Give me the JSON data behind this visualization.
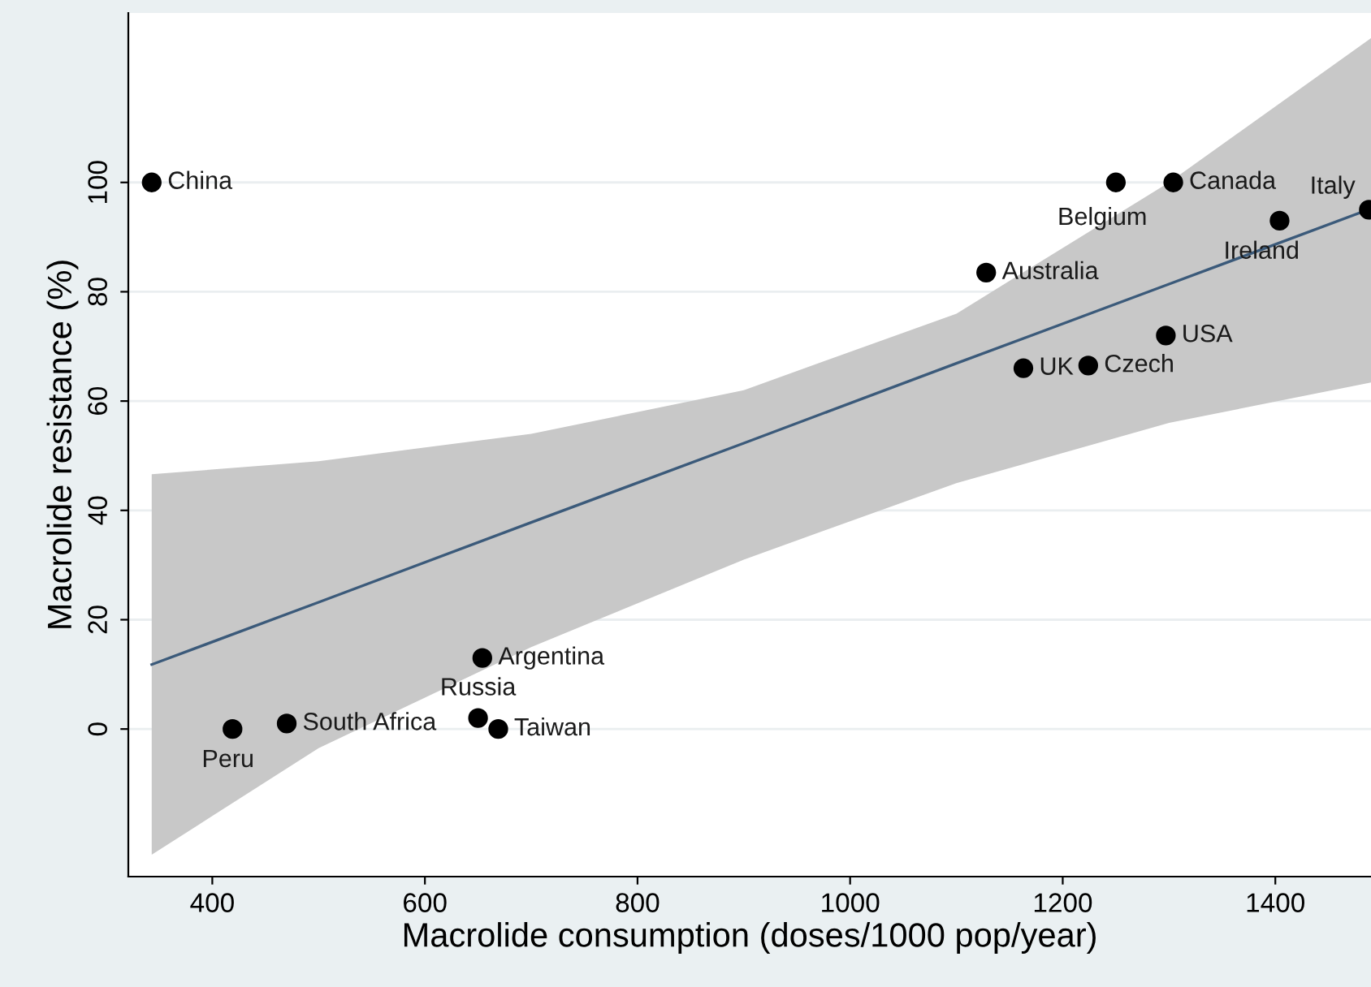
{
  "chart_data": {
    "type": "scatter",
    "xlabel": "Macrolide consumption (doses/1000 pop/year)",
    "ylabel": "Macrolide resistance (%)",
    "xlim": [
      321,
      1490
    ],
    "ylim": [
      -27,
      131
    ],
    "xticks": [
      400,
      600,
      800,
      1000,
      1200,
      1400
    ],
    "yticks": [
      0,
      20,
      40,
      60,
      80,
      100
    ],
    "grid": "y",
    "series": [
      {
        "type": "line",
        "marker": "none",
        "color": "#3b5a7a",
        "x": [
          343,
          500,
          700,
          900,
          1100,
          1300,
          1490
        ],
        "values": [
          11.8,
          23.2,
          37.8,
          52.3,
          66.9,
          81.4,
          95.2
        ],
        "lower": [
          -23,
          -3.5,
          15,
          31,
          45,
          56,
          63.4
        ],
        "upper": [
          46.6,
          49,
          54,
          62,
          76,
          100,
          126.4
        ]
      },
      {
        "marker": "circle",
        "color": "#000000",
        "x": [
          343,
          419,
          470,
          654,
          650,
          669,
          1128,
          1250,
          1304,
          1404,
          1297,
          1163,
          1224,
          1488
        ],
        "values": [
          100,
          0,
          1,
          13,
          2,
          0,
          83.5,
          100,
          100,
          93,
          72,
          66,
          66.5,
          95
        ]
      }
    ],
    "annotations": [
      {
        "text": "China",
        "x": 343,
        "y": 100
      },
      {
        "text": "Peru",
        "x": 419,
        "y": 0
      },
      {
        "text": "South Africa",
        "x": 470,
        "y": 1
      },
      {
        "text": "Argentina",
        "x": 654,
        "y": 13
      },
      {
        "text": "Russia",
        "x": 650,
        "y": 2
      },
      {
        "text": "Taiwan",
        "x": 669,
        "y": 0
      },
      {
        "text": "Australia",
        "x": 1128,
        "y": 83.5
      },
      {
        "text": "Belgium",
        "x": 1250,
        "y": 100
      },
      {
        "text": "Canada",
        "x": 1304,
        "y": 100
      },
      {
        "text": "Ireland",
        "x": 1404,
        "y": 93
      },
      {
        "text": "USA",
        "x": 1297,
        "y": 72
      },
      {
        "text": "UK",
        "x": 1163,
        "y": 66
      },
      {
        "text": "Czech",
        "x": 1224,
        "y": 66.5
      },
      {
        "text": "Italy",
        "x": 1488,
        "y": 95
      }
    ]
  }
}
